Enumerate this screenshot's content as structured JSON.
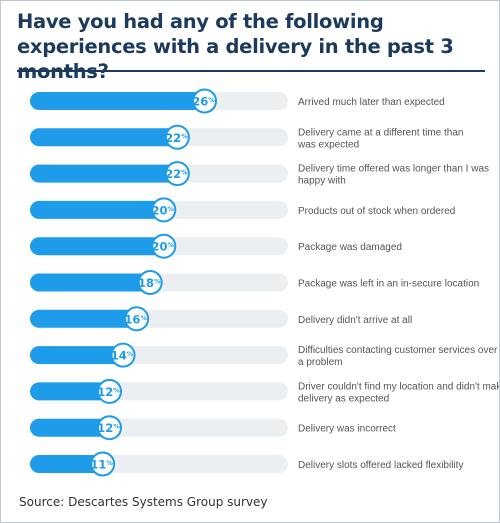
{
  "title": "Have you had any of the following experiences with a delivery in the past 3 months?",
  "source": "Source: Descartes Systems Group survey",
  "colors": {
    "accent": "#1e9be9",
    "track": "#eceff2",
    "title": "#1b3a5c",
    "label": "#555555"
  },
  "chart_data": {
    "type": "bar",
    "orientation": "horizontal",
    "value_suffix": "%",
    "xlim": [
      0,
      38
    ],
    "grid": false,
    "legend": "none",
    "categories": [
      "Arrived much later than expected",
      "Delivery came at a different time than was expected",
      "Delivery time offered was longer than I was happy with",
      "Products out of stock when ordered",
      "Package was damaged",
      "Package was left in an in-secure location",
      "Delivery didn't arrive at all",
      "Difficulties contacting customer services over a problem",
      "Driver couldn't find my location and didn't make delivery as expected",
      "Delivery was incorrect",
      "Delivery slots offered lacked flexibility"
    ],
    "category_lines": [
      [
        "Arrived much later than expected"
      ],
      [
        "Delivery came at a different time than",
        "was expected"
      ],
      [
        "Delivery time offered was longer than I was",
        "happy with"
      ],
      [
        "Products out of stock when ordered"
      ],
      [
        "Package was damaged"
      ],
      [
        "Package was left in an in-secure location"
      ],
      [
        "Delivery didn't arrive at all"
      ],
      [
        "Difficulties contacting customer services over",
        "a problem"
      ],
      [
        "Driver couldn't find my location and didn't make",
        "delivery as expected"
      ],
      [
        "Delivery was incorrect"
      ],
      [
        "Delivery slots offered lacked flexibility"
      ]
    ],
    "values": [
      26,
      22,
      22,
      20,
      20,
      18,
      16,
      14,
      12,
      12,
      11
    ],
    "data_labels": [
      "26",
      "22",
      "22",
      "20",
      "20",
      "18",
      "16",
      "14",
      "12",
      "12",
      "11"
    ]
  }
}
